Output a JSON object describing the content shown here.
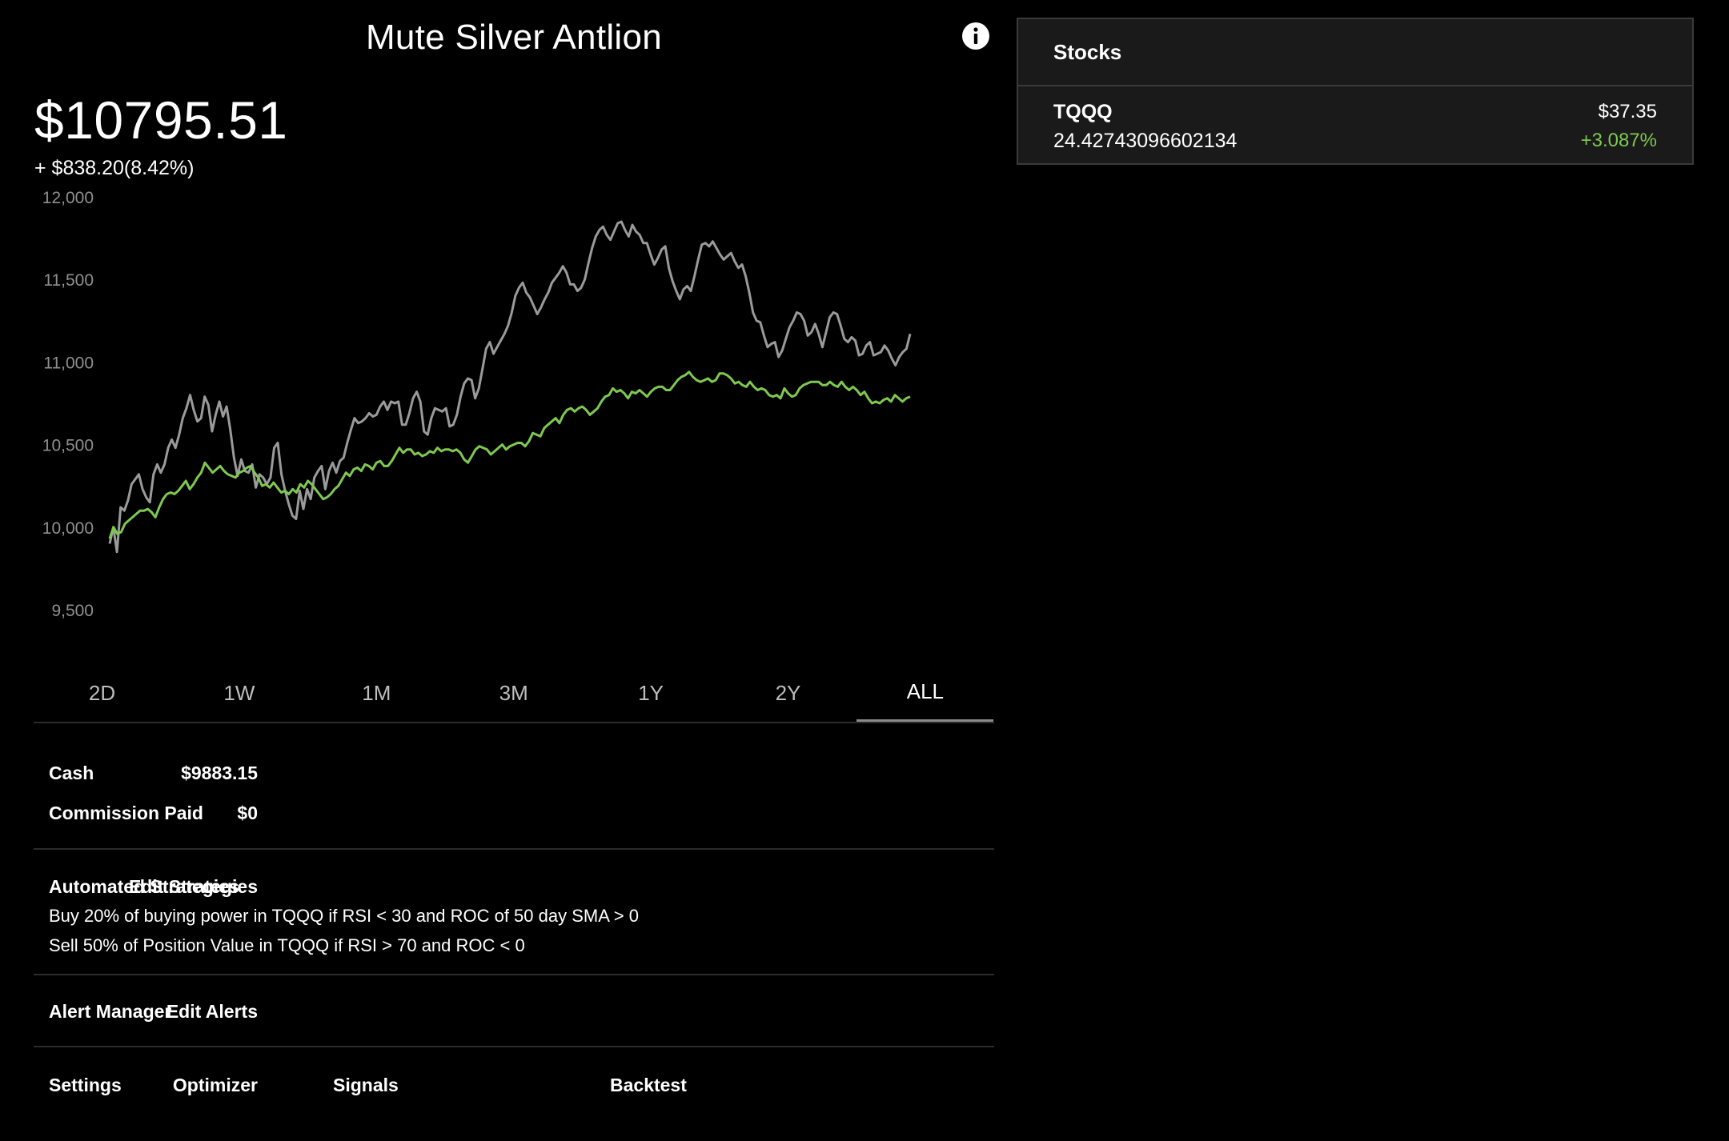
{
  "portfolio": {
    "name": "Mute Silver Antlion",
    "balance": "$10795.51",
    "change": "+ $838.20(8.42%)"
  },
  "icons": {
    "info": "info-icon"
  },
  "colors": {
    "background": "#000000",
    "portfolio_line": "#7ec850",
    "benchmark_line": "#9a9a9a",
    "positive": "#7ec850",
    "axis_label": "#8f8f8f",
    "panel": "#1a1a1a"
  },
  "chart_data": {
    "type": "line",
    "ylim": [
      9500,
      12000
    ],
    "yticks": [
      "12,000",
      "11,500",
      "11,000",
      "10,500",
      "10,000",
      "9,500"
    ],
    "grid": false,
    "series": [
      {
        "values": [
          9930,
          10000,
          9960,
          9970,
          10020,
          10040,
          10060,
          10080,
          10100,
          10100,
          10110,
          10090,
          10060,
          10120,
          10170,
          10200,
          10210,
          10200,
          10220,
          10250,
          10280,
          10230,
          10260,
          10300,
          10330,
          10390,
          10360,
          10330,
          10350,
          10370,
          10340,
          10320,
          10310,
          10300,
          10330,
          10340,
          10360,
          10370,
          10330,
          10300,
          10250,
          10260,
          10240,
          10270,
          10240,
          10210,
          10220,
          10200,
          10230,
          10210,
          10260,
          10240,
          10280,
          10260,
          10230,
          10200,
          10170,
          10180,
          10200,
          10230,
          10250,
          10290,
          10330,
          10310,
          10350,
          10360,
          10340,
          10380,
          10370,
          10350,
          10390,
          10400,
          10370,
          10370,
          10400,
          10440,
          10480,
          10450,
          10470,
          10470,
          10440,
          10450,
          10430,
          10440,
          10460,
          10450,
          10480,
          10460,
          10470,
          10470,
          10460,
          10470,
          10450,
          10410,
          10390,
          10430,
          10470,
          10490,
          10480,
          10470,
          10440,
          10460,
          10480,
          10500,
          10470,
          10490,
          10500,
          10510,
          10510,
          10490,
          10520,
          10570,
          10560,
          10550,
          10600,
          10620,
          10640,
          10660,
          10630,
          10680,
          10710,
          10720,
          10700,
          10720,
          10730,
          10710,
          10680,
          10700,
          10720,
          10760,
          10790,
          10800,
          10840,
          10820,
          10830,
          10810,
          10780,
          10820,
          10810,
          10830,
          10810,
          10790,
          10820,
          10840,
          10850,
          10850,
          10830,
          10830,
          10860,
          10890,
          10910,
          10920,
          10940,
          10910,
          10890,
          10880,
          10890,
          10900,
          10880,
          10890,
          10930,
          10930,
          10920,
          10900,
          10870,
          10880,
          10860,
          10850,
          10880,
          10850,
          10830,
          10840,
          10830,
          10800,
          10790,
          10800,
          10780,
          10840,
          10810,
          10790,
          10800,
          10840,
          10860,
          10870,
          10880,
          10880,
          10880,
          10860,
          10860,
          10880,
          10860,
          10850,
          10880,
          10850,
          10830,
          10850,
          10830,
          10800,
          10820,
          10780,
          10750,
          10760,
          10750,
          10770,
          10780,
          10760,
          10800,
          10780,
          10760,
          10780,
          10790
        ]
      },
      {
        "values": [
          9900,
          10000,
          9850,
          10120,
          10100,
          10160,
          10260,
          10290,
          10320,
          10230,
          10180,
          10150,
          10320,
          10380,
          10330,
          10380,
          10480,
          10530,
          10480,
          10560,
          10660,
          10720,
          10800,
          10710,
          10640,
          10660,
          10790,
          10740,
          10580,
          10680,
          10760,
          10670,
          10730,
          10590,
          10420,
          10310,
          10410,
          10340,
          10330,
          10380,
          10240,
          10320,
          10300,
          10260,
          10300,
          10480,
          10510,
          10320,
          10220,
          10140,
          10070,
          10050,
          10220,
          10110,
          10230,
          10170,
          10300,
          10340,
          10370,
          10230,
          10340,
          10390,
          10330,
          10400,
          10420,
          10510,
          10590,
          10660,
          10630,
          10640,
          10660,
          10690,
          10670,
          10680,
          10730,
          10760,
          10710,
          10760,
          10750,
          10760,
          10620,
          10620,
          10690,
          10780,
          10820,
          10760,
          10580,
          10560,
          10660,
          10720,
          10710,
          10700,
          10720,
          10610,
          10620,
          10680,
          10790,
          10870,
          10900,
          10890,
          10780,
          10840,
          10960,
          11080,
          11120,
          11050,
          11090,
          11130,
          11170,
          11220,
          11300,
          11400,
          11450,
          11480,
          11420,
          11390,
          11340,
          11290,
          11330,
          11380,
          11420,
          11480,
          11510,
          11540,
          11580,
          11540,
          11470,
          11470,
          11430,
          11450,
          11500,
          11600,
          11690,
          11760,
          11800,
          11820,
          11770,
          11740,
          11790,
          11840,
          11850,
          11800,
          11760,
          11830,
          11790,
          11770,
          11720,
          11720,
          11650,
          11590,
          11630,
          11680,
          11700,
          11570,
          11490,
          11430,
          11380,
          11440,
          11460,
          11430,
          11520,
          11620,
          11710,
          11720,
          11700,
          11730,
          11690,
          11650,
          11620,
          11640,
          11660,
          11610,
          11570,
          11590,
          11520,
          11420,
          11300,
          11250,
          11240,
          11160,
          11090,
          11110,
          11120,
          11030,
          11070,
          11140,
          11210,
          11250,
          11300,
          11290,
          11250,
          11160,
          11180,
          11230,
          11170,
          11090,
          11180,
          11270,
          11300,
          11290,
          11220,
          11140,
          11120,
          11150,
          11130,
          11040,
          11050,
          11100,
          11120,
          11040,
          11050,
          11060,
          11100,
          11070,
          11020,
          10980,
          11030,
          11060,
          11080,
          11170
        ]
      }
    ]
  },
  "tabs": [
    {
      "label": "2D",
      "active": false
    },
    {
      "label": "1W",
      "active": false
    },
    {
      "label": "1M",
      "active": false
    },
    {
      "label": "3M",
      "active": false
    },
    {
      "label": "1Y",
      "active": false
    },
    {
      "label": "2Y",
      "active": false
    },
    {
      "label": "ALL",
      "active": true
    }
  ],
  "summary": {
    "cash_label": "Cash",
    "cash_value": "$9883.15",
    "commission_label": "Commission Paid",
    "commission_value": "$0"
  },
  "strategies": {
    "title": "Automated Strategies",
    "edit_label": "Edit Strategies",
    "items": [
      "Buy 20% of buying power in TQQQ if RSI < 30 and ROC of 50 day SMA > 0",
      "Sell 50% of Position Value in TQQQ if RSI > 70 and ROC < 0"
    ]
  },
  "alerts": {
    "title": "Alert Manager",
    "edit_label": "Edit Alerts"
  },
  "footer_nav": {
    "settings": "Settings",
    "signals": "Signals",
    "backtest": "Backtest",
    "optimizer": "Optimizer"
  },
  "stocks_panel": {
    "title": "Stocks",
    "rows": [
      {
        "symbol": "TQQQ",
        "shares": "24.42743096602134",
        "price": "$37.35",
        "change": "+3.087%"
      }
    ]
  }
}
